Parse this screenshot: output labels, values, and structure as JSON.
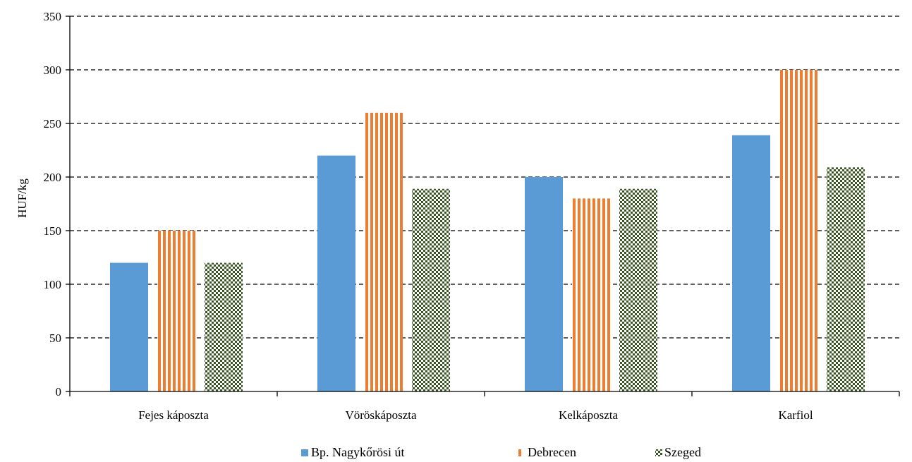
{
  "chart_data": {
    "type": "bar",
    "title": "",
    "xlabel": "",
    "ylabel": "HUF/kg",
    "ylim": [
      0,
      350
    ],
    "yticks": [
      0,
      50,
      100,
      150,
      200,
      250,
      300,
      350
    ],
    "categories": [
      "Fejes káposzta",
      "Vöröskáposzta",
      "Kelkáposzta",
      "Karfiol"
    ],
    "series": [
      {
        "name": "Bp. Nagykőrösi út",
        "values": [
          120,
          220,
          200,
          239
        ],
        "color": "#5b9bd5",
        "pattern": "solid"
      },
      {
        "name": "Debrecen",
        "values": [
          150,
          260,
          180,
          300
        ],
        "color": "#ed7d31",
        "pattern": "vertical-stripes"
      },
      {
        "name": "Szeged",
        "values": [
          120,
          189,
          189,
          209
        ],
        "color": "#385723",
        "pattern": "checkerboard"
      }
    ],
    "grid": "horizontal-dashed",
    "legend_position": "bottom"
  }
}
